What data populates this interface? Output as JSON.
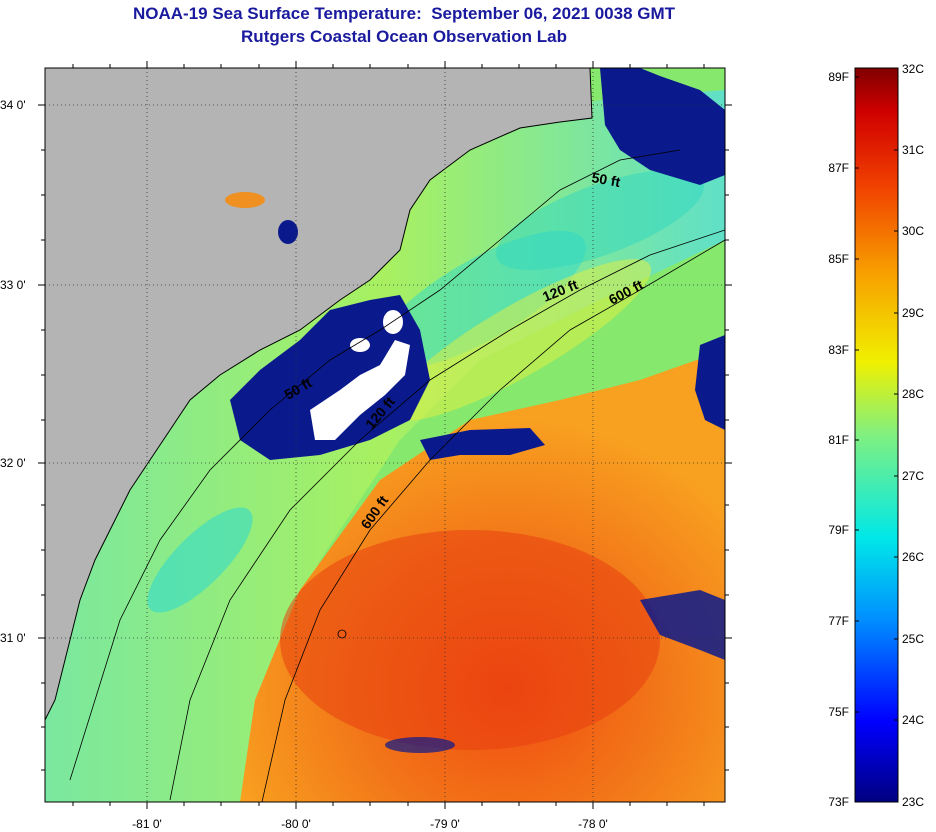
{
  "title": {
    "line1": "NOAA-19 Sea Surface Temperature:  September 06, 2021 0038 GMT",
    "line2": "Rutgers Coastal Ocean Observation Lab"
  },
  "map": {
    "lat_labels": [
      "34 0'",
      "33 0'",
      "32 0'",
      "31 0'"
    ],
    "lon_labels": [
      "-81 0'",
      "-80 0'",
      "-79 0'",
      "-78 0'"
    ],
    "contour_labels": [
      "50 ft",
      "120 ft",
      "600 ft",
      "50 ft",
      "120 ft",
      "600 ft"
    ],
    "colors": {
      "land": "#b4b4b4",
      "cloud": "#0a1a8c",
      "cloud_white": "#ffffff",
      "cool": "#22d8d8",
      "mid": "#b4f040",
      "warm": "#f07818",
      "hot": "#e84010"
    }
  },
  "colorbar": {
    "fahrenheit_labels": [
      "89F",
      "87F",
      "85F",
      "83F",
      "81F",
      "79F",
      "77F",
      "75F",
      "73F"
    ],
    "celsius_labels": [
      "32C",
      "31C",
      "30C",
      "29C",
      "28C",
      "27C",
      "26C",
      "25C",
      "24C",
      "23C"
    ]
  }
}
